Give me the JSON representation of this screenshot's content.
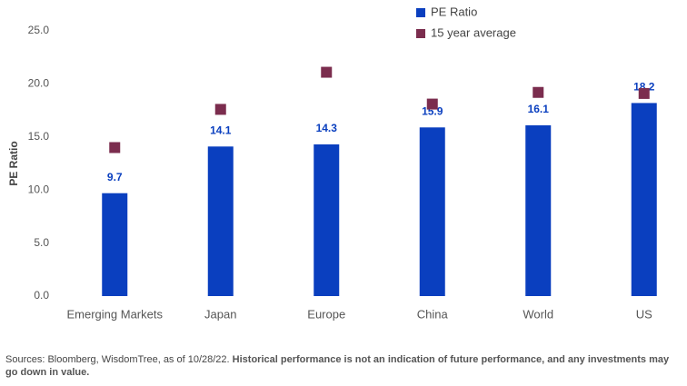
{
  "chart_data": {
    "type": "bar",
    "y_label": "PE Ratio",
    "categories": [
      "Emerging Markets",
      "Japan",
      "Europe",
      "China",
      "World",
      "US"
    ],
    "series": [
      {
        "name": "PE Ratio",
        "color": "#0a3fbf",
        "marker": "bar",
        "values": [
          9.7,
          14.1,
          14.3,
          15.9,
          16.1,
          18.2
        ]
      },
      {
        "name": "15 year average",
        "color": "#7b2d4e",
        "marker": "square",
        "values": [
          14.0,
          17.6,
          21.1,
          18.1,
          19.2,
          19.1
        ]
      }
    ],
    "ylim": [
      0,
      25
    ],
    "yticks": [
      {
        "value": 0,
        "label": "0.0"
      },
      {
        "value": 5,
        "label": "5.0"
      },
      {
        "value": 10,
        "label": "10.0"
      },
      {
        "value": 15,
        "label": "15.0"
      },
      {
        "value": 20,
        "label": "20.0"
      },
      {
        "value": 25,
        "label": "25.0"
      }
    ],
    "grid": false,
    "source_note": "Sources: Bloomberg, WisdomTree, as of 10/28/22.",
    "disclaimer": "Historical performance is not an indication of future performance, and any investments may go down in value."
  }
}
